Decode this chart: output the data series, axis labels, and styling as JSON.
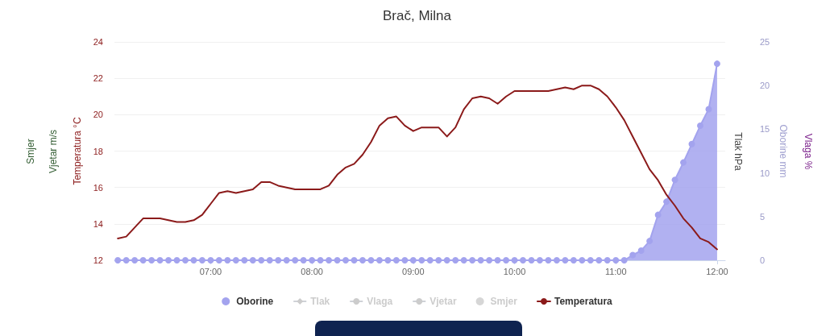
{
  "chart_data": {
    "type": "line",
    "title": "Brač, Milna",
    "ylabel": "Temperatura °C",
    "y2label": "Oborine mm",
    "annotations": [
      "Smjer",
      "Vjetar m/s",
      "Tlak hPa",
      "Vlaga %"
    ],
    "x": [
      6.0833,
      6.1667,
      6.25,
      6.3333,
      6.4167,
      6.5,
      6.5833,
      6.6667,
      6.75,
      6.8333,
      6.9167,
      7,
      7.0833,
      7.1667,
      7.25,
      7.3333,
      7.4167,
      7.5,
      7.5833,
      7.6667,
      7.75,
      7.8333,
      7.9167,
      8,
      8.0833,
      8.1667,
      8.25,
      8.3333,
      8.4167,
      8.5,
      8.5833,
      8.6667,
      8.75,
      8.8333,
      8.9167,
      9,
      9.0833,
      9.1667,
      9.25,
      9.3333,
      9.4167,
      9.5,
      9.5833,
      9.6667,
      9.75,
      9.8333,
      9.9167,
      10,
      10.0833,
      10.1667,
      10.25,
      10.3333,
      10.4167,
      10.5,
      10.5833,
      10.6667,
      10.75,
      10.8333,
      10.9167,
      11,
      11.0833,
      11.1667,
      11.25,
      11.3333,
      11.4167,
      11.5,
      11.5833,
      11.6667,
      11.75,
      11.8333,
      11.9167,
      12
    ],
    "xlim": [
      6.05,
      12.08
    ],
    "xticks": [
      {
        "value": 7,
        "label": "07:00"
      },
      {
        "value": 8,
        "label": "08:00"
      },
      {
        "value": 9,
        "label": "09:00"
      },
      {
        "value": 10,
        "label": "10:00"
      },
      {
        "value": 11,
        "label": "11:00"
      },
      {
        "value": 12,
        "label": "12:00"
      }
    ],
    "ylim": [
      12,
      24
    ],
    "yticks": [
      12,
      14,
      16,
      18,
      20,
      22,
      24
    ],
    "y2lim": [
      0,
      25
    ],
    "y2ticks": [
      0,
      5,
      10,
      15,
      20,
      25
    ],
    "grid": "y",
    "legend": "bottom",
    "series": [
      {
        "name": "Oborine",
        "type": "area",
        "axis": "y2",
        "marker": "circle",
        "color": "#a3a3ee",
        "values": [
          0,
          0,
          0,
          0,
          0,
          0,
          0,
          0,
          0,
          0,
          0,
          0,
          0,
          0,
          0,
          0,
          0,
          0,
          0,
          0,
          0,
          0,
          0,
          0,
          0,
          0,
          0,
          0,
          0,
          0,
          0,
          0,
          0,
          0,
          0,
          0,
          0,
          0,
          0,
          0,
          0,
          0,
          0,
          0,
          0,
          0,
          0,
          0,
          0,
          0,
          0,
          0,
          0,
          0,
          0,
          0,
          0,
          0,
          0,
          0,
          0,
          0.6,
          1.1,
          2.2,
          5.2,
          6.7,
          9.2,
          11.2,
          13.3,
          15.4,
          17.3,
          22.5
        ]
      },
      {
        "name": "Tlak",
        "type": "line",
        "marker": "diamond",
        "color": "#cccccc",
        "values": [
          null,
          null,
          null,
          null,
          null,
          null,
          null,
          null,
          null,
          null,
          null,
          null,
          null,
          null,
          null,
          null,
          null,
          null,
          null,
          null,
          null,
          null,
          null,
          null,
          null,
          null,
          null,
          null,
          null,
          null,
          null,
          null,
          null,
          null,
          null,
          null,
          null,
          null,
          null,
          null,
          null,
          null,
          null,
          null,
          null,
          null,
          null,
          null,
          null,
          null,
          null,
          null,
          null,
          null,
          null,
          null,
          null,
          null,
          null,
          null,
          null,
          null,
          null,
          null,
          null,
          null,
          null,
          null,
          null,
          null,
          null,
          null
        ]
      },
      {
        "name": "Vlaga",
        "type": "line",
        "marker": "none",
        "color": "#cccccc",
        "values": [
          null,
          null,
          null,
          null,
          null,
          null,
          null,
          null,
          null,
          null,
          null,
          null,
          null,
          null,
          null,
          null,
          null,
          null,
          null,
          null,
          null,
          null,
          null,
          null,
          null,
          null,
          null,
          null,
          null,
          null,
          null,
          null,
          null,
          null,
          null,
          null,
          null,
          null,
          null,
          null,
          null,
          null,
          null,
          null,
          null,
          null,
          null,
          null,
          null,
          null,
          null,
          null,
          null,
          null,
          null,
          null,
          null,
          null,
          null,
          null,
          null,
          null,
          null,
          null,
          null,
          null,
          null,
          null,
          null,
          null,
          null,
          null
        ]
      },
      {
        "name": "Vjetar",
        "type": "line",
        "marker": "none",
        "color": "#cccccc",
        "values": [
          null,
          null,
          null,
          null,
          null,
          null,
          null,
          null,
          null,
          null,
          null,
          null,
          null,
          null,
          null,
          null,
          null,
          null,
          null,
          null,
          null,
          null,
          null,
          null,
          null,
          null,
          null,
          null,
          null,
          null,
          null,
          null,
          null,
          null,
          null,
          null,
          null,
          null,
          null,
          null,
          null,
          null,
          null,
          null,
          null,
          null,
          null,
          null,
          null,
          null,
          null,
          null,
          null,
          null,
          null,
          null,
          null,
          null,
          null,
          null,
          null,
          null,
          null,
          null,
          null,
          null,
          null,
          null,
          null,
          null,
          null,
          null
        ]
      },
      {
        "name": "Smjer",
        "type": "scatter",
        "marker": "circle",
        "color": "#cccccc",
        "values": [
          null,
          null,
          null,
          null,
          null,
          null,
          null,
          null,
          null,
          null,
          null,
          null,
          null,
          null,
          null,
          null,
          null,
          null,
          null,
          null,
          null,
          null,
          null,
          null,
          null,
          null,
          null,
          null,
          null,
          null,
          null,
          null,
          null,
          null,
          null,
          null,
          null,
          null,
          null,
          null,
          null,
          null,
          null,
          null,
          null,
          null,
          null,
          null,
          null,
          null,
          null,
          null,
          null,
          null,
          null,
          null,
          null,
          null,
          null,
          null,
          null,
          null,
          null,
          null,
          null,
          null,
          null,
          null,
          null,
          null,
          null,
          null
        ]
      },
      {
        "name": "Temperatura",
        "marker": "none",
        "color": "#8b1a1a",
        "values": [
          13.2,
          13.3,
          13.8,
          14.3,
          14.3,
          14.3,
          14.2,
          14.1,
          14.1,
          14.2,
          14.5,
          15.1,
          15.7,
          15.8,
          15.7,
          15.8,
          15.9,
          16.3,
          16.3,
          16.1,
          16.0,
          15.9,
          15.9,
          15.9,
          15.9,
          16.1,
          16.7,
          17.1,
          17.3,
          17.8,
          18.5,
          19.4,
          19.8,
          19.9,
          19.4,
          19.1,
          19.3,
          19.3,
          19.3,
          18.8,
          19.3,
          20.3,
          20.9,
          21.0,
          20.9,
          20.6,
          21.0,
          21.3,
          21.3,
          21.3,
          21.3,
          21.3,
          21.4,
          21.5,
          21.4,
          21.6,
          21.6,
          21.4,
          21.0,
          20.4,
          19.7,
          18.8,
          17.9,
          17.0,
          16.4,
          15.6,
          15.0,
          14.3,
          13.8,
          13.2,
          13.0,
          12.6
        ]
      }
    ]
  }
}
